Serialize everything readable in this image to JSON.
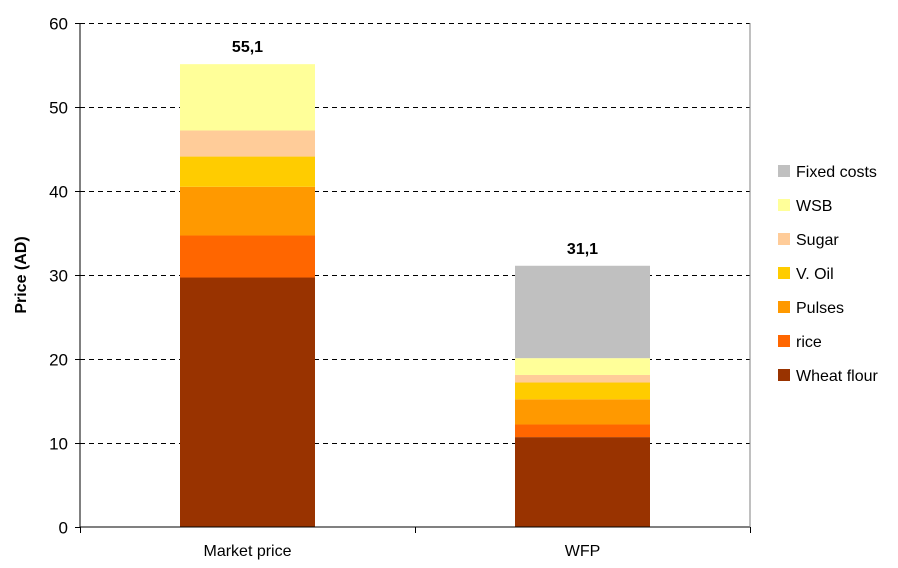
{
  "chart_data": {
    "type": "bar",
    "stacked": true,
    "title": "",
    "xlabel": "",
    "ylabel": "Price (AD)",
    "ylim": [
      0,
      60
    ],
    "yticks": [
      0,
      10,
      20,
      30,
      40,
      50,
      60
    ],
    "grid": "horizontal dashed",
    "legend_position": "right",
    "categories": [
      "Market price",
      "WFP"
    ],
    "totals_labels": [
      "55,1",
      "31,1"
    ],
    "series": [
      {
        "name": "Wheat flour",
        "color": "#993300",
        "values": [
          29.7,
          10.7
        ]
      },
      {
        "name": "rice",
        "color": "#FF6600",
        "values": [
          5.0,
          1.5
        ]
      },
      {
        "name": "Pulses",
        "color": "#FF9900",
        "values": [
          5.8,
          3.0
        ]
      },
      {
        "name": "V. Oil",
        "color": "#FFCC00",
        "values": [
          3.6,
          2.0
        ]
      },
      {
        "name": "Sugar",
        "color": "#FFCC99",
        "values": [
          3.1,
          0.9
        ]
      },
      {
        "name": "WSB",
        "color": "#FFFF99",
        "values": [
          7.9,
          2.0
        ]
      },
      {
        "name": "Fixed costs",
        "color": "#C0C0C0",
        "values": [
          0,
          11.0
        ]
      }
    ]
  }
}
